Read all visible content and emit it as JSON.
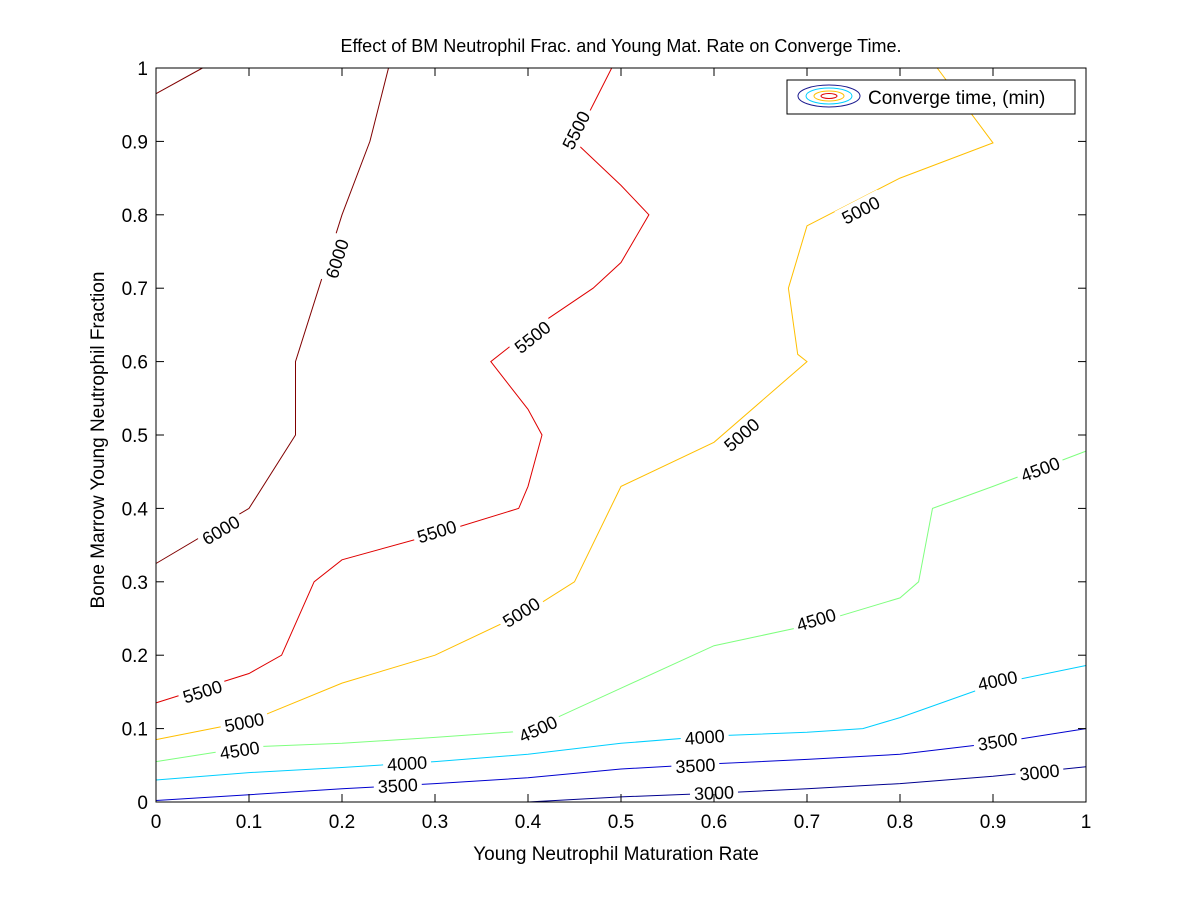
{
  "chart_data": {
    "type": "contour",
    "title": "Effect of BM Neutrophil Frac. and Young Mat. Rate on Converge Time.",
    "xlabel": "Young Neutrophil Maturation Rate",
    "ylabel": "Bone Marrow Young Neutrophil Fraction",
    "xlim": [
      0,
      1
    ],
    "ylim": [
      0,
      1
    ],
    "xticks": [
      0,
      0.1,
      0.2,
      0.3,
      0.4,
      0.5,
      0.6,
      0.7,
      0.8,
      0.9,
      1
    ],
    "yticks": [
      0,
      0.1,
      0.2,
      0.3,
      0.4,
      0.5,
      0.6,
      0.7,
      0.8,
      0.9,
      1
    ],
    "xtick_labels": [
      "0",
      "0.1",
      "0.2",
      "0.3",
      "0.4",
      "0.5",
      "0.6",
      "0.7",
      "0.8",
      "0.9",
      "1"
    ],
    "ytick_labels": [
      "0",
      "0.1",
      "0.2",
      "0.3",
      "0.4",
      "0.5",
      "0.6",
      "0.7",
      "0.8",
      "0.9",
      "1"
    ],
    "legend": {
      "label": "Converge time, (min)",
      "location": "top-right"
    },
    "grid": false,
    "levels": [
      {
        "level": 3000,
        "label": "3000",
        "color": "#00008f",
        "lines": [
          [
            [
              0.4,
              0.0
            ],
            [
              0.5,
              0.007
            ],
            [
              0.6,
              0.012
            ],
            [
              0.7,
              0.018
            ],
            [
              0.8,
              0.025
            ],
            [
              0.9,
              0.035
            ],
            [
              1.0,
              0.048
            ]
          ]
        ],
        "labels": [
          {
            "x": 0.6,
            "y": 0.012,
            "text": "3000"
          },
          {
            "x": 0.95,
            "y": 0.04,
            "text": "3000"
          }
        ]
      },
      {
        "level": 3500,
        "label": "3500",
        "color": "#0000cf",
        "lines": [
          [
            [
              0.0,
              0.002
            ],
            [
              0.1,
              0.01
            ],
            [
              0.2,
              0.018
            ],
            [
              0.3,
              0.025
            ],
            [
              0.4,
              0.033
            ],
            [
              0.5,
              0.045
            ],
            [
              0.6,
              0.052
            ],
            [
              0.7,
              0.058
            ],
            [
              0.8,
              0.065
            ],
            [
              0.9,
              0.08
            ],
            [
              1.0,
              0.1
            ]
          ]
        ],
        "labels": [
          {
            "x": 0.26,
            "y": 0.022,
            "text": "3500"
          },
          {
            "x": 0.58,
            "y": 0.049,
            "text": "3500"
          },
          {
            "x": 0.905,
            "y": 0.082,
            "text": "3500"
          }
        ]
      },
      {
        "level": 4000,
        "label": "4000",
        "color": "#00cfff",
        "lines": [
          [
            [
              0.0,
              0.03
            ],
            [
              0.1,
              0.04
            ],
            [
              0.2,
              0.047
            ],
            [
              0.3,
              0.055
            ],
            [
              0.4,
              0.065
            ],
            [
              0.5,
              0.08
            ],
            [
              0.6,
              0.09
            ],
            [
              0.7,
              0.095
            ],
            [
              0.76,
              0.1
            ],
            [
              0.8,
              0.115
            ],
            [
              0.9,
              0.16
            ],
            [
              1.0,
              0.186
            ]
          ]
        ],
        "labels": [
          {
            "x": 0.27,
            "y": 0.052,
            "text": "4000"
          },
          {
            "x": 0.59,
            "y": 0.088,
            "text": "4000"
          },
          {
            "x": 0.905,
            "y": 0.165,
            "text": "4000"
          }
        ]
      },
      {
        "level": 4500,
        "label": "4500",
        "color": "#7fff7f",
        "lines": [
          [
            [
              0.0,
              0.055
            ],
            [
              0.1,
              0.075
            ],
            [
              0.2,
              0.08
            ],
            [
              0.3,
              0.088
            ],
            [
              0.4,
              0.097
            ],
            [
              0.5,
              0.155
            ],
            [
              0.6,
              0.213
            ],
            [
              0.7,
              0.24
            ],
            [
              0.8,
              0.278
            ],
            [
              0.82,
              0.3
            ],
            [
              0.835,
              0.4
            ],
            [
              0.9,
              0.43
            ],
            [
              1.0,
              0.478
            ]
          ]
        ],
        "labels": [
          {
            "x": 0.09,
            "y": 0.07,
            "text": "4500"
          },
          {
            "x": 0.411,
            "y": 0.099,
            "text": "4500"
          },
          {
            "x": 0.71,
            "y": 0.248,
            "text": "4500"
          },
          {
            "x": 0.951,
            "y": 0.453,
            "text": "4500"
          }
        ]
      },
      {
        "level": 5000,
        "label": "5000",
        "color": "#ffbf00",
        "lines": [
          [
            [
              0.0,
              0.085
            ],
            [
              0.1,
              0.11
            ],
            [
              0.2,
              0.162
            ],
            [
              0.3,
              0.2
            ],
            [
              0.4,
              0.26
            ],
            [
              0.45,
              0.3
            ],
            [
              0.5,
              0.43
            ],
            [
              0.6,
              0.49
            ],
            [
              0.7,
              0.6
            ],
            [
              0.69,
              0.61
            ],
            [
              0.68,
              0.7
            ],
            [
              0.7,
              0.785
            ],
            [
              0.8,
              0.85
            ],
            [
              0.9,
              0.898
            ],
            [
              0.84,
              1.0
            ]
          ]
        ],
        "labels": [
          {
            "x": 0.095,
            "y": 0.108,
            "text": "5000"
          },
          {
            "x": 0.393,
            "y": 0.258,
            "text": "5000"
          },
          {
            "x": 0.63,
            "y": 0.5,
            "text": "5000"
          },
          {
            "x": 0.758,
            "y": 0.806,
            "text": "5000"
          }
        ]
      },
      {
        "level": 5500,
        "label": "5500",
        "color": "#df0000",
        "lines": [
          [
            [
              0.0,
              0.135
            ],
            [
              0.1,
              0.175
            ],
            [
              0.135,
              0.2
            ],
            [
              0.17,
              0.3
            ],
            [
              0.2,
              0.33
            ],
            [
              0.3,
              0.365
            ],
            [
              0.39,
              0.4
            ],
            [
              0.4,
              0.43
            ],
            [
              0.415,
              0.5
            ],
            [
              0.4,
              0.535
            ],
            [
              0.36,
              0.6
            ],
            [
              0.4,
              0.64
            ],
            [
              0.47,
              0.7
            ],
            [
              0.5,
              0.735
            ],
            [
              0.53,
              0.8
            ],
            [
              0.5,
              0.84
            ],
            [
              0.45,
              0.9
            ],
            [
              0.49,
              1.0
            ]
          ]
        ],
        "labels": [
          {
            "x": 0.05,
            "y": 0.15,
            "text": "5500"
          },
          {
            "x": 0.302,
            "y": 0.368,
            "text": "5500"
          },
          {
            "x": 0.405,
            "y": 0.633,
            "text": "5500"
          },
          {
            "x": 0.452,
            "y": 0.915,
            "text": "5500"
          }
        ]
      },
      {
        "level": 6000,
        "label": "6000",
        "color": "#800000",
        "lines": [
          [
            [
              0.0,
              0.325
            ],
            [
              0.1,
              0.4
            ],
            [
              0.15,
              0.5
            ],
            [
              0.15,
              0.6
            ],
            [
              0.2,
              0.8
            ],
            [
              0.23,
              0.9
            ],
            [
              0.25,
              1.0
            ]
          ],
          [
            [
              0.0,
              0.965
            ],
            [
              0.05,
              1.0
            ]
          ]
        ],
        "labels": [
          {
            "x": 0.07,
            "y": 0.37,
            "text": "6000"
          },
          {
            "x": 0.195,
            "y": 0.74,
            "text": "6000"
          }
        ]
      }
    ]
  }
}
